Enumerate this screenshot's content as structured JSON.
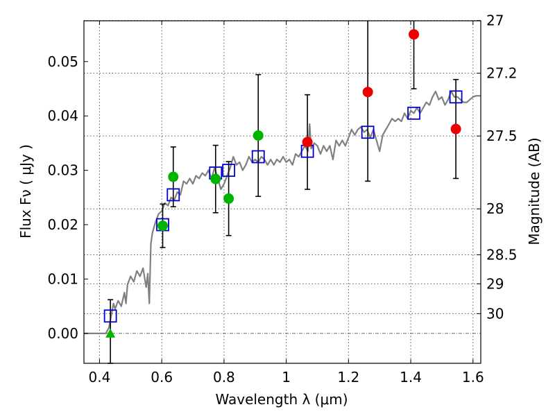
{
  "chart_data": {
    "type": "scatter",
    "xlabel": "Wavelength  λ (μm)",
    "ylabel": "Flux  Fν  ( μJy )",
    "ylabel_right": "Magnitude (AB)",
    "xlim": [
      0.35,
      1.625
    ],
    "ylim": [
      -0.0055,
      0.0575
    ],
    "grid": true,
    "x_ticks": [
      {
        "value": 0.4,
        "label": "0.4"
      },
      {
        "value": 0.6,
        "label": "0.6"
      },
      {
        "value": 0.8,
        "label": "0.8"
      },
      {
        "value": 1.0,
        "label": "1"
      },
      {
        "value": 1.2,
        "label": "1.2"
      },
      {
        "value": 1.4,
        "label": "1.4"
      },
      {
        "value": 1.6,
        "label": "1.6"
      }
    ],
    "y_ticks": [
      {
        "value": 0.0,
        "label": "0.00"
      },
      {
        "value": 0.01,
        "label": "0.01"
      },
      {
        "value": 0.02,
        "label": "0.02"
      },
      {
        "value": 0.03,
        "label": "0.03"
      },
      {
        "value": 0.04,
        "label": "0.04"
      },
      {
        "value": 0.05,
        "label": "0.05"
      }
    ],
    "mag_ticks": [
      {
        "value": 27,
        "label": "27"
      },
      {
        "value": 27.2,
        "label": "27.2"
      },
      {
        "value": 27.5,
        "label": "27.5"
      },
      {
        "value": 28,
        "label": "28"
      },
      {
        "value": 28.5,
        "label": "28.5"
      },
      {
        "value": 29,
        "label": "29"
      },
      {
        "value": 30,
        "label": "30"
      }
    ],
    "colors": {
      "spectrum": "#808080",
      "model": "#0000cc",
      "green": "#00b400",
      "red": "#ee0000",
      "errorbar": "#000000"
    },
    "spectrum": [
      [
        0.35,
        0.0
      ],
      [
        0.4,
        0.0
      ],
      [
        0.42,
        0.0
      ],
      [
        0.43,
        0.001
      ],
      [
        0.44,
        0.004
      ],
      [
        0.445,
        0.0055
      ],
      [
        0.45,
        0.0045
      ],
      [
        0.46,
        0.006
      ],
      [
        0.47,
        0.005
      ],
      [
        0.48,
        0.0075
      ],
      [
        0.485,
        0.0055
      ],
      [
        0.49,
        0.009
      ],
      [
        0.5,
        0.0105
      ],
      [
        0.51,
        0.0095
      ],
      [
        0.52,
        0.0115
      ],
      [
        0.53,
        0.0105
      ],
      [
        0.54,
        0.012
      ],
      [
        0.55,
        0.0085
      ],
      [
        0.555,
        0.011
      ],
      [
        0.56,
        0.0055
      ],
      [
        0.565,
        0.0165
      ],
      [
        0.57,
        0.0185
      ],
      [
        0.58,
        0.0205
      ],
      [
        0.59,
        0.022
      ],
      [
        0.6,
        0.0225
      ],
      [
        0.61,
        0.024
      ],
      [
        0.62,
        0.0235
      ],
      [
        0.63,
        0.025
      ],
      [
        0.64,
        0.0245
      ],
      [
        0.65,
        0.026
      ],
      [
        0.66,
        0.0255
      ],
      [
        0.67,
        0.028
      ],
      [
        0.68,
        0.0275
      ],
      [
        0.69,
        0.0285
      ],
      [
        0.7,
        0.0275
      ],
      [
        0.71,
        0.029
      ],
      [
        0.72,
        0.0285
      ],
      [
        0.73,
        0.0295
      ],
      [
        0.74,
        0.029
      ],
      [
        0.75,
        0.03
      ],
      [
        0.76,
        0.0285
      ],
      [
        0.77,
        0.0305
      ],
      [
        0.78,
        0.0285
      ],
      [
        0.79,
        0.0265
      ],
      [
        0.8,
        0.0275
      ],
      [
        0.81,
        0.029
      ],
      [
        0.82,
        0.0305
      ],
      [
        0.83,
        0.0325
      ],
      [
        0.84,
        0.031
      ],
      [
        0.85,
        0.0315
      ],
      [
        0.86,
        0.03
      ],
      [
        0.87,
        0.031
      ],
      [
        0.88,
        0.0325
      ],
      [
        0.89,
        0.0315
      ],
      [
        0.9,
        0.032
      ],
      [
        0.91,
        0.0315
      ],
      [
        0.92,
        0.0325
      ],
      [
        0.93,
        0.032
      ],
      [
        0.94,
        0.031
      ],
      [
        0.95,
        0.032
      ],
      [
        0.96,
        0.031
      ],
      [
        0.97,
        0.032
      ],
      [
        0.98,
        0.0315
      ],
      [
        0.99,
        0.0325
      ],
      [
        1.0,
        0.0315
      ],
      [
        1.01,
        0.032
      ],
      [
        1.02,
        0.031
      ],
      [
        1.03,
        0.033
      ],
      [
        1.04,
        0.0325
      ],
      [
        1.05,
        0.0335
      ],
      [
        1.06,
        0.0345
      ],
      [
        1.07,
        0.0335
      ],
      [
        1.075,
        0.0385
      ],
      [
        1.08,
        0.034
      ],
      [
        1.09,
        0.035
      ],
      [
        1.1,
        0.0345
      ],
      [
        1.11,
        0.033
      ],
      [
        1.12,
        0.0345
      ],
      [
        1.13,
        0.0335
      ],
      [
        1.14,
        0.0345
      ],
      [
        1.15,
        0.032
      ],
      [
        1.16,
        0.0355
      ],
      [
        1.17,
        0.0345
      ],
      [
        1.18,
        0.0355
      ],
      [
        1.19,
        0.0345
      ],
      [
        1.2,
        0.036
      ],
      [
        1.21,
        0.0375
      ],
      [
        1.22,
        0.0365
      ],
      [
        1.23,
        0.0375
      ],
      [
        1.24,
        0.038
      ],
      [
        1.25,
        0.037
      ],
      [
        1.26,
        0.0375
      ],
      [
        1.27,
        0.036
      ],
      [
        1.28,
        0.0375
      ],
      [
        1.29,
        0.0355
      ],
      [
        1.3,
        0.0335
      ],
      [
        1.31,
        0.0365
      ],
      [
        1.32,
        0.0375
      ],
      [
        1.33,
        0.0385
      ],
      [
        1.34,
        0.0395
      ],
      [
        1.35,
        0.039
      ],
      [
        1.36,
        0.0395
      ],
      [
        1.37,
        0.039
      ],
      [
        1.38,
        0.0405
      ],
      [
        1.39,
        0.0395
      ],
      [
        1.4,
        0.041
      ],
      [
        1.41,
        0.0405
      ],
      [
        1.42,
        0.0415
      ],
      [
        1.43,
        0.0405
      ],
      [
        1.44,
        0.0415
      ],
      [
        1.45,
        0.0425
      ],
      [
        1.46,
        0.042
      ],
      [
        1.47,
        0.0435
      ],
      [
        1.48,
        0.0445
      ],
      [
        1.49,
        0.043
      ],
      [
        1.5,
        0.0435
      ],
      [
        1.51,
        0.042
      ],
      [
        1.52,
        0.043
      ],
      [
        1.53,
        0.0445
      ],
      [
        1.54,
        0.0435
      ],
      [
        1.55,
        0.0435
      ],
      [
        1.56,
        0.043
      ],
      [
        1.57,
        0.0425
      ],
      [
        1.58,
        0.0425
      ],
      [
        1.59,
        0.043
      ],
      [
        1.6,
        0.0435
      ],
      [
        1.61,
        0.0437
      ],
      [
        1.625,
        0.0437
      ]
    ],
    "model_points": [
      {
        "x": 0.435,
        "y": 0.0032
      },
      {
        "x": 0.603,
        "y": 0.02
      },
      {
        "x": 0.637,
        "y": 0.0255
      },
      {
        "x": 0.773,
        "y": 0.0295
      },
      {
        "x": 0.815,
        "y": 0.03
      },
      {
        "x": 0.91,
        "y": 0.0325
      },
      {
        "x": 1.068,
        "y": 0.0335
      },
      {
        "x": 1.262,
        "y": 0.037
      },
      {
        "x": 1.41,
        "y": 0.0405
      },
      {
        "x": 1.545,
        "y": 0.0435
      }
    ],
    "observed_green": [
      {
        "x": 0.603,
        "y": 0.0198,
        "err": 0.004
      },
      {
        "x": 0.637,
        "y": 0.0288,
        "err": 0.0055
      },
      {
        "x": 0.773,
        "y": 0.0284,
        "err": 0.0062
      },
      {
        "x": 0.815,
        "y": 0.0248,
        "err": 0.0068
      },
      {
        "x": 0.91,
        "y": 0.0364,
        "err": 0.0112
      }
    ],
    "observed_red": [
      {
        "x": 1.068,
        "y": 0.0352,
        "err": 0.0087
      },
      {
        "x": 1.262,
        "y": 0.0444,
        "err": 0.0164
      },
      {
        "x": 1.41,
        "y": 0.055,
        "err": 0.01
      },
      {
        "x": 1.545,
        "y": 0.0376,
        "err": 0.0091
      }
    ],
    "upper_limit": {
      "x": 0.435,
      "y": 0.0,
      "err": 0.0062
    }
  }
}
